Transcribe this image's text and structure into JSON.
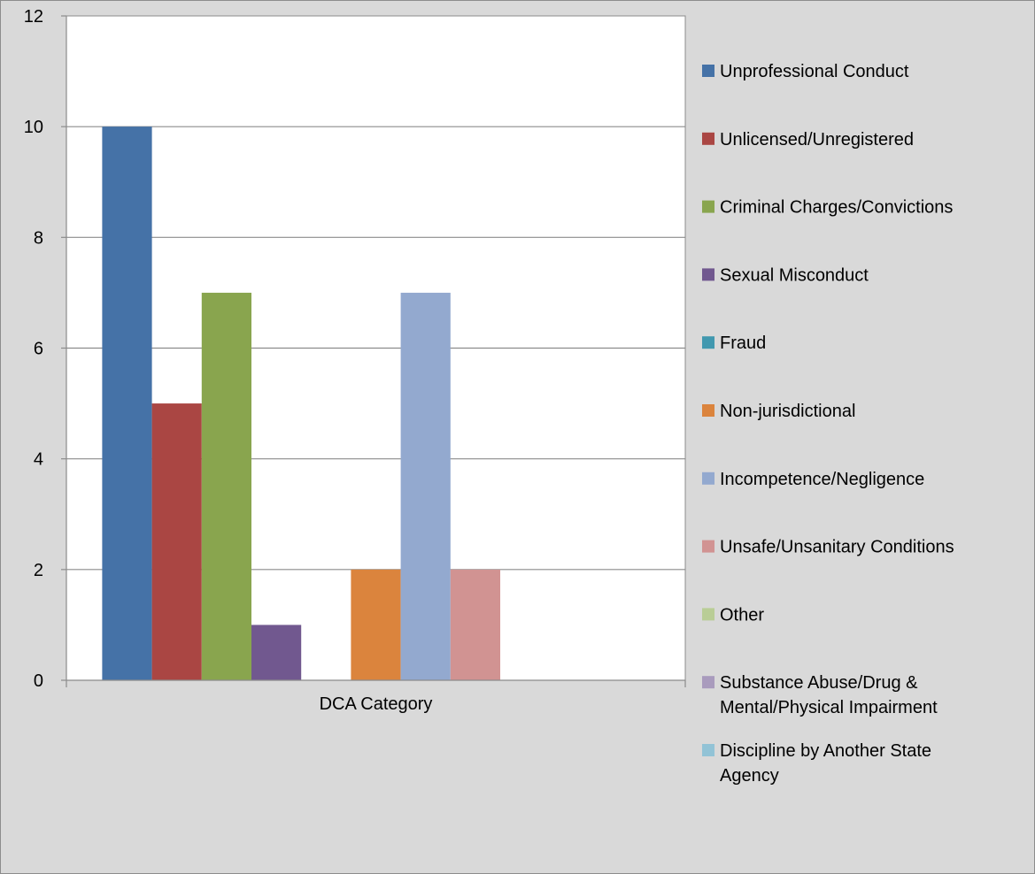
{
  "chart_data": {
    "type": "bar",
    "title": "",
    "xlabel": "",
    "ylabel": "",
    "categories": [
      "DCA Category"
    ],
    "ylim": [
      0,
      12
    ],
    "yticks": [
      0,
      2,
      4,
      6,
      8,
      10,
      12
    ],
    "grid": true,
    "legend_position": "right",
    "series": [
      {
        "name": "Unprofessional Conduct",
        "values": [
          10
        ],
        "color": "#4572a7"
      },
      {
        "name": "Unlicensed/Unregistered",
        "values": [
          5
        ],
        "color": "#aa4643"
      },
      {
        "name": "Criminal Charges/Convictions",
        "values": [
          7
        ],
        "color": "#89a54e"
      },
      {
        "name": "Sexual Misconduct",
        "values": [
          1
        ],
        "color": "#71588f"
      },
      {
        "name": "Fraud",
        "values": [
          0
        ],
        "color": "#4198af"
      },
      {
        "name": "Non-jurisdictional",
        "values": [
          2
        ],
        "color": "#db843d"
      },
      {
        "name": "Incompetence/Negligence",
        "values": [
          7
        ],
        "color": "#93a9cf"
      },
      {
        "name": "Unsafe/Unsanitary Conditions",
        "values": [
          2
        ],
        "color": "#d19392"
      },
      {
        "name": "Other",
        "values": [
          0
        ],
        "color": "#b9cd96"
      },
      {
        "name": "Substance Abuse/Drug & Mental/Physical Impairment",
        "legend_lines": [
          "Substance Abuse/Drug &",
          "Mental/Physical Impairment"
        ],
        "values": [
          0
        ],
        "color": "#a99bbd"
      },
      {
        "name": "Discipline by Another State Agency",
        "legend_lines": [
          "Discipline by Another State",
          "Agency"
        ],
        "values": [
          0
        ],
        "color": "#92c3d6"
      }
    ]
  }
}
